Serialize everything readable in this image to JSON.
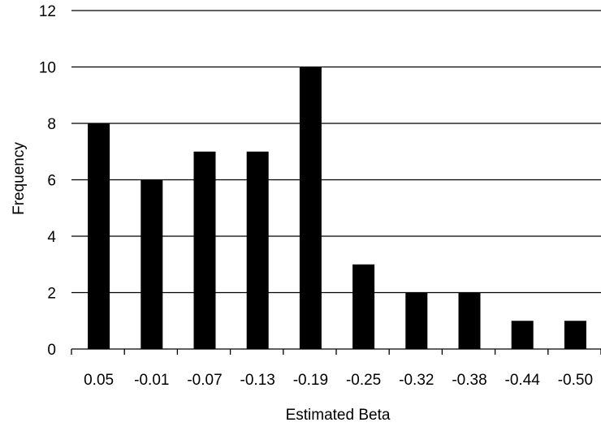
{
  "chart_data": {
    "type": "bar",
    "title": "",
    "xlabel": "Estimated Beta",
    "ylabel": "Frequency",
    "categories": [
      "0.05",
      "-0.01",
      "-0.07",
      "-0.13",
      "-0.19",
      "-0.25",
      "-0.32",
      "-0.38",
      "-0.44",
      "-0.50"
    ],
    "values": [
      8,
      6,
      7,
      7,
      10,
      3,
      2,
      2,
      1,
      1
    ],
    "ylim": [
      0,
      12
    ],
    "yticks": [
      "0",
      "2",
      "4",
      "6",
      "8",
      "10",
      "12"
    ],
    "grid": true,
    "bar_color": "#000000",
    "grid_color": "#000000"
  }
}
